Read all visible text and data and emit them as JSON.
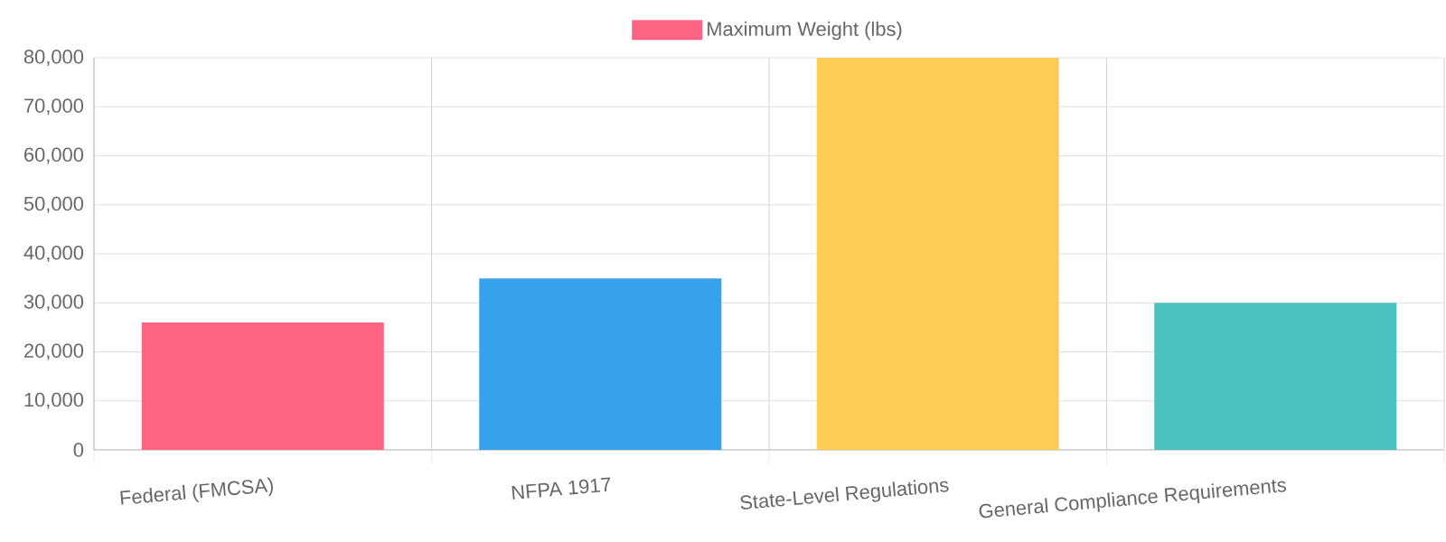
{
  "chart_data": {
    "type": "bar",
    "categories": [
      "Federal (FMCSA)",
      "NFPA 1917",
      "State-Level Regulations",
      "General Compliance Requirements"
    ],
    "series": [
      {
        "name": "Maximum Weight (lbs)",
        "colors": [
          "#ff6384",
          "#36a2eb",
          "#ffcd56",
          "#4bc0c0"
        ],
        "values": [
          26000,
          35000,
          80000,
          30000
        ]
      }
    ],
    "ylim": [
      0,
      80000
    ],
    "yticks": [
      {
        "value": 0,
        "label": "0"
      },
      {
        "value": 10000,
        "label": "10,000"
      },
      {
        "value": 20000,
        "label": "20,000"
      },
      {
        "value": 30000,
        "label": "30,000"
      },
      {
        "value": 40000,
        "label": "40,000"
      },
      {
        "value": 50000,
        "label": "50,000"
      },
      {
        "value": 60000,
        "label": "60,000"
      },
      {
        "value": 70000,
        "label": "70,000"
      },
      {
        "value": 80000,
        "label": "80,000"
      }
    ],
    "grid": true,
    "legend": "top"
  }
}
